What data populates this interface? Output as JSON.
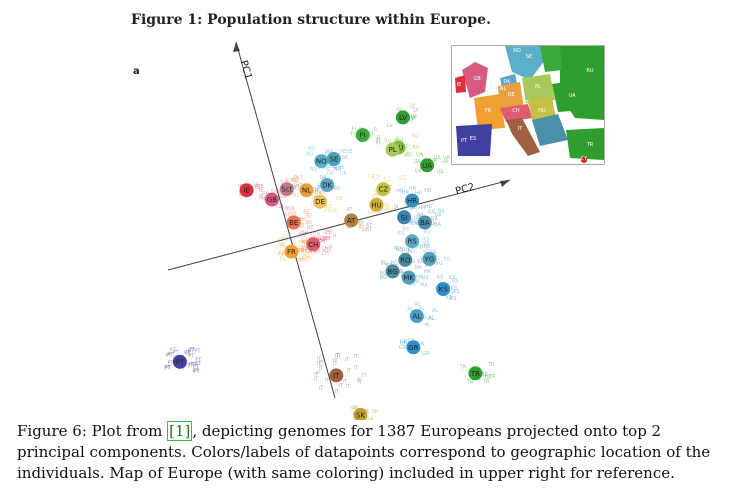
{
  "figure": {
    "title": "Figure 1: Population structure within Europe.",
    "panel_letter": "a",
    "axis_pc1": "PC1",
    "axis_pc2": "PC2"
  },
  "map_labels": [
    "NO",
    "SE",
    "GB",
    "IE",
    "DK",
    "DE",
    "PL",
    "RU",
    "FR",
    "NL",
    "CH",
    "AT",
    "HU",
    "UA",
    "ES",
    "PT",
    "IT",
    "TR",
    "CY"
  ],
  "caption": {
    "prefix": "Figure 6: Plot from ",
    "ref": "[1]",
    "suffix": ", depicting genomes for 1387 Europeans projected onto top 2 principal components. Colors/labels of datapoints correspond to geographic location of the individuals. Map of Europe (with same coloring) included in upper right for reference."
  },
  "chart_data": {
    "type": "scatter",
    "x_label": "PC2",
    "y_label": "PC1",
    "grid": false,
    "populations": [
      {
        "label": "LV",
        "color": "#2e9e2e",
        "x": 9.3,
        "y": 8.9
      },
      {
        "label": "FI",
        "color": "#3aaa3a",
        "x": 5.8,
        "y": 7.2
      },
      {
        "label": "RU",
        "color": "#7fbf3f",
        "x": 8.9,
        "y": 6.0
      },
      {
        "label": "PL",
        "color": "#a8c85a",
        "x": 8.4,
        "y": 5.8
      },
      {
        "label": "UA",
        "color": "#2e9e2e",
        "x": 11.4,
        "y": 4.3
      },
      {
        "label": "NO",
        "color": "#5ab0c8",
        "x": 2.2,
        "y": 4.7
      },
      {
        "label": "SE",
        "color": "#4aa0b8",
        "x": 3.3,
        "y": 4.9
      },
      {
        "label": "DK",
        "color": "#5aa8c8",
        "x": 2.7,
        "y": 2.4
      },
      {
        "label": "IE",
        "color": "#e0303a",
        "x": -4.3,
        "y": 1.9
      },
      {
        "label": "GB",
        "color": "#d85a80",
        "x": -2.1,
        "y": 1.0
      },
      {
        "label": "Sct",
        "color": "#c07a8a",
        "x": -0.8,
        "y": 2.0
      },
      {
        "label": "NL",
        "color": "#e8a040",
        "x": 0.9,
        "y": 1.9
      },
      {
        "label": "DE",
        "color": "#e8c060",
        "x": 2.1,
        "y": 0.8
      },
      {
        "label": "CZ",
        "color": "#c8c040",
        "x": 7.6,
        "y": 2.0
      },
      {
        "label": "HU",
        "color": "#d0b030",
        "x": 7.0,
        "y": 0.5
      },
      {
        "label": "AT",
        "color": "#b08040",
        "x": 4.8,
        "y": -1.0
      },
      {
        "label": "BE",
        "color": "#e87050",
        "x": -0.2,
        "y": -1.2
      },
      {
        "label": "HR",
        "color": "#3a90c0",
        "x": 10.1,
        "y": 0.9
      },
      {
        "label": "SI",
        "color": "#3a80b0",
        "x": 9.4,
        "y": -0.7
      },
      {
        "label": "BA",
        "color": "#4a90a8",
        "x": 11.2,
        "y": -1.2
      },
      {
        "label": "FR",
        "color": "#f0a030",
        "x": -0.4,
        "y": -4.0
      },
      {
        "label": "CH",
        "color": "#e05a70",
        "x": 1.5,
        "y": -3.3
      },
      {
        "label": "RS",
        "color": "#60a8c8",
        "x": 10.1,
        "y": -3.0
      },
      {
        "label": "YG",
        "color": "#58a0c0",
        "x": 11.6,
        "y": -4.7
      },
      {
        "label": "RO",
        "color": "#4a8aa0",
        "x": 9.5,
        "y": -4.8
      },
      {
        "label": "BG",
        "color": "#4a8aa0",
        "x": 8.4,
        "y": -5.9
      },
      {
        "label": "MK",
        "color": "#4aa0c0",
        "x": 9.8,
        "y": -6.5
      },
      {
        "label": "KS",
        "color": "#2a90d0",
        "x": 12.8,
        "y": -7.6
      },
      {
        "label": "AL",
        "color": "#4aa0c8",
        "x": 10.5,
        "y": -10.2
      },
      {
        "label": "GR",
        "color": "#2a90d0",
        "x": 10.2,
        "y": -13.2
      },
      {
        "label": "PT",
        "color": "#4040a0",
        "x": -10.1,
        "y": -14.6
      },
      {
        "label": "IT",
        "color": "#a06040",
        "x": 3.5,
        "y": -15.9
      },
      {
        "label": "SK",
        "color": "#c0a030",
        "x": 5.6,
        "y": -19.7
      },
      {
        "label": "TR",
        "color": "#2e9e2e",
        "x": 15.6,
        "y": -15.7
      },
      {
        "label": "CY",
        "color": "#e02020",
        "x": 7.1,
        "y": -25.1
      }
    ]
  }
}
